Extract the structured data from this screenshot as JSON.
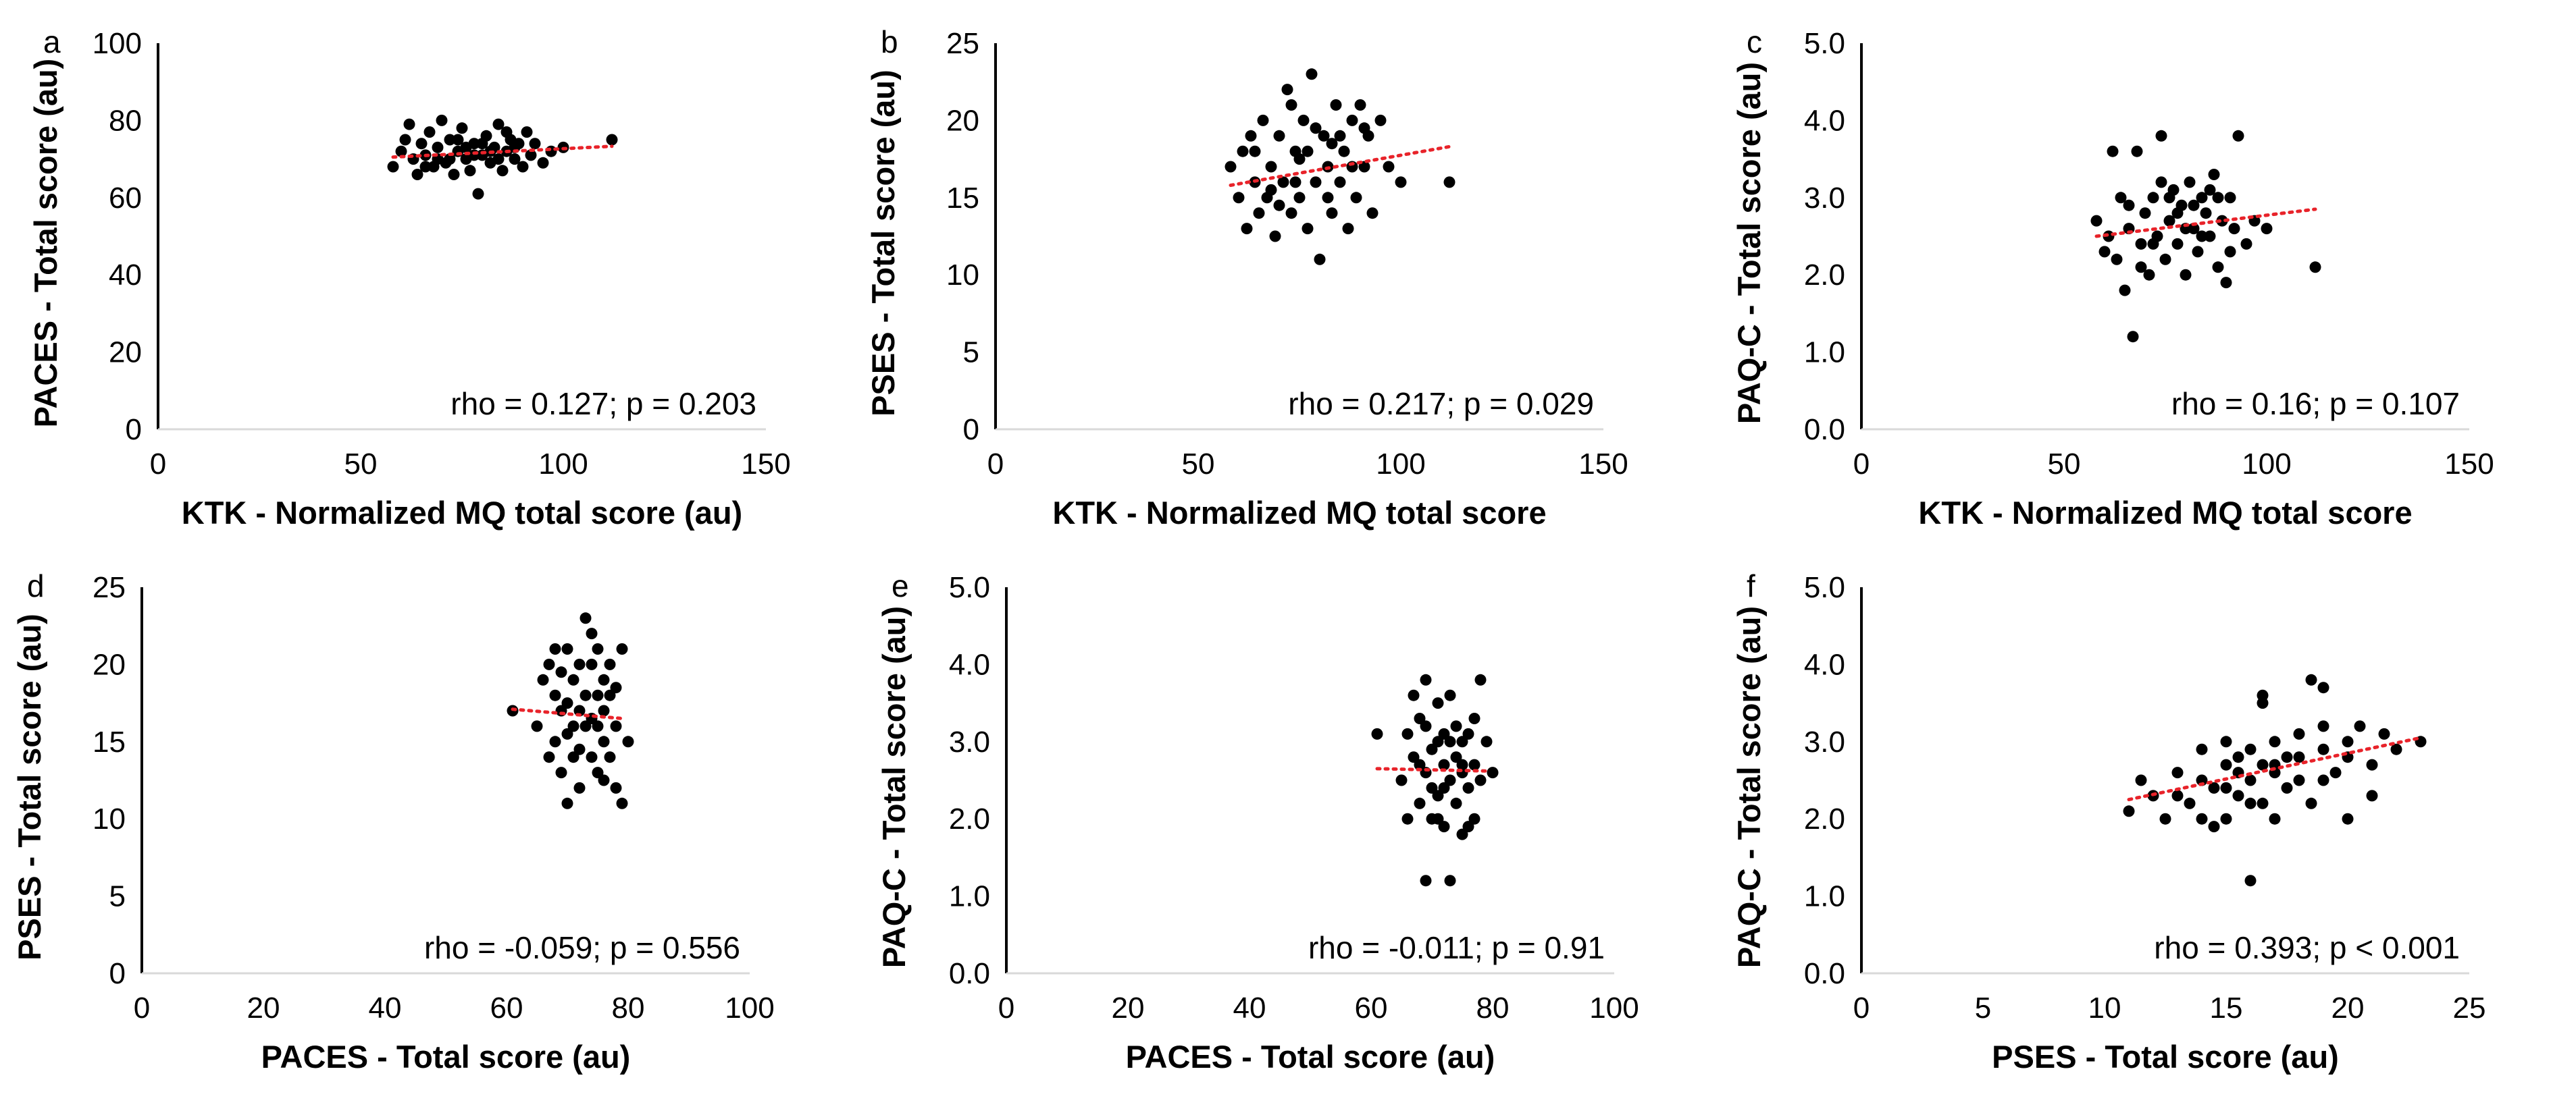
{
  "figure": {
    "background": "#ffffff",
    "point_color": "#000000",
    "trend_color": "#e8232a",
    "axis_color": "#000000"
  },
  "chart_data": [
    {
      "panel": "a",
      "type": "scatter",
      "xlabel": "KTK - Normalized MQ total score (au)",
      "ylabel": "PACES - Total score (au)",
      "xlim": [
        0,
        150
      ],
      "ylim": [
        0,
        100
      ],
      "xticks": [
        0,
        50,
        100,
        150
      ],
      "yticks": [
        0,
        20,
        40,
        60,
        80,
        100
      ],
      "tick_decimals": 0,
      "annotation": "rho = 0.127; p = 0.203",
      "trendline": {
        "x": [
          58,
          112
        ],
        "y": [
          70.5,
          73.3
        ]
      },
      "points": [
        [
          58,
          68
        ],
        [
          60,
          72
        ],
        [
          61,
          75
        ],
        [
          62,
          79
        ],
        [
          63,
          70
        ],
        [
          64,
          66
        ],
        [
          65,
          74
        ],
        [
          66,
          71
        ],
        [
          67,
          77
        ],
        [
          68,
          68
        ],
        [
          69,
          73
        ],
        [
          70,
          80
        ],
        [
          71,
          69
        ],
        [
          72,
          75
        ],
        [
          73,
          66
        ],
        [
          74,
          72
        ],
        [
          75,
          78
        ],
        [
          76,
          70
        ],
        [
          77,
          67
        ],
        [
          78,
          74
        ],
        [
          79,
          61
        ],
        [
          80,
          71
        ],
        [
          81,
          76
        ],
        [
          82,
          69
        ],
        [
          83,
          73
        ],
        [
          84,
          79
        ],
        [
          85,
          67
        ],
        [
          86,
          72
        ],
        [
          87,
          75
        ],
        [
          88,
          70
        ],
        [
          89,
          74
        ],
        [
          90,
          68
        ],
        [
          91,
          77
        ],
        [
          92,
          71
        ],
        [
          93,
          74
        ],
        [
          95,
          69
        ],
        [
          97,
          72
        ],
        [
          100,
          73
        ],
        [
          112,
          75
        ],
        [
          66,
          68
        ],
        [
          72,
          70
        ],
        [
          78,
          71
        ],
        [
          84,
          70
        ],
        [
          88,
          73
        ],
        [
          74,
          75
        ],
        [
          80,
          74
        ],
        [
          69,
          70
        ],
        [
          76,
          73
        ],
        [
          82,
          72
        ],
        [
          86,
          77
        ]
      ]
    },
    {
      "panel": "b",
      "type": "scatter",
      "xlabel": "KTK - Normalized MQ total score",
      "ylabel": "PSES - Total score (au)",
      "xlim": [
        0,
        150
      ],
      "ylim": [
        0,
        25
      ],
      "xticks": [
        0,
        50,
        100,
        150
      ],
      "yticks": [
        0,
        5,
        10,
        15,
        20,
        25
      ],
      "tick_decimals": 0,
      "annotation": "rho = 0.217; p = 0.029",
      "trendline": {
        "x": [
          58,
          112
        ],
        "y": [
          15.8,
          18.3
        ]
      },
      "points": [
        [
          58,
          17
        ],
        [
          60,
          15
        ],
        [
          61,
          18
        ],
        [
          62,
          13
        ],
        [
          63,
          19
        ],
        [
          64,
          16
        ],
        [
          65,
          14
        ],
        [
          66,
          20
        ],
        [
          67,
          15
        ],
        [
          68,
          17
        ],
        [
          69,
          12.5
        ],
        [
          70,
          19
        ],
        [
          71,
          16
        ],
        [
          72,
          22
        ],
        [
          73,
          14
        ],
        [
          74,
          18
        ],
        [
          75,
          15
        ],
        [
          76,
          20
        ],
        [
          77,
          13
        ],
        [
          78,
          23
        ],
        [
          79,
          16
        ],
        [
          80,
          11
        ],
        [
          81,
          19
        ],
        [
          82,
          17
        ],
        [
          83,
          14
        ],
        [
          84,
          21
        ],
        [
          85,
          16
        ],
        [
          86,
          18
        ],
        [
          87,
          13
        ],
        [
          88,
          20
        ],
        [
          89,
          15
        ],
        [
          90,
          21
        ],
        [
          91,
          17
        ],
        [
          92,
          19
        ],
        [
          93,
          14
        ],
        [
          95,
          20
        ],
        [
          97,
          17
        ],
        [
          100,
          16
        ],
        [
          112,
          16
        ],
        [
          64,
          18
        ],
        [
          70,
          14.5
        ],
        [
          75,
          17.5
        ],
        [
          79,
          19.5
        ],
        [
          85,
          19
        ],
        [
          88,
          17
        ],
        [
          73,
          21
        ],
        [
          82,
          15
        ],
        [
          68,
          15.5
        ],
        [
          77,
          18
        ],
        [
          91,
          19.5
        ],
        [
          83,
          18.5
        ],
        [
          74,
          16
        ]
      ]
    },
    {
      "panel": "c",
      "type": "scatter",
      "xlabel": "KTK - Normalized MQ total score",
      "ylabel": "PAQ-C - Total score (au)",
      "xlim": [
        0,
        150
      ],
      "ylim": [
        0,
        5
      ],
      "xticks": [
        0,
        50,
        100,
        150
      ],
      "yticks": [
        0,
        1,
        2,
        3,
        4,
        5
      ],
      "tick_decimals": 1,
      "annotation": "rho = 0.16; p = 0.107",
      "trendline": {
        "x": [
          58,
          112
        ],
        "y": [
          2.5,
          2.85
        ]
      },
      "points": [
        [
          58,
          2.7
        ],
        [
          60,
          2.3
        ],
        [
          61,
          2.5
        ],
        [
          62,
          3.6
        ],
        [
          63,
          2.2
        ],
        [
          64,
          3.0
        ],
        [
          65,
          1.8
        ],
        [
          66,
          2.6
        ],
        [
          67,
          1.2
        ],
        [
          68,
          3.6
        ],
        [
          69,
          2.4
        ],
        [
          70,
          2.8
        ],
        [
          71,
          2.0
        ],
        [
          72,
          3.0
        ],
        [
          73,
          2.5
        ],
        [
          74,
          3.8
        ],
        [
          75,
          2.2
        ],
        [
          76,
          2.7
        ],
        [
          77,
          3.1
        ],
        [
          78,
          2.4
        ],
        [
          79,
          2.9
        ],
        [
          80,
          2.0
        ],
        [
          81,
          3.2
        ],
        [
          82,
          2.6
        ],
        [
          83,
          2.3
        ],
        [
          84,
          3.0
        ],
        [
          85,
          2.8
        ],
        [
          86,
          2.5
        ],
        [
          87,
          3.3
        ],
        [
          88,
          2.1
        ],
        [
          89,
          2.7
        ],
        [
          90,
          1.9
        ],
        [
          91,
          3.0
        ],
        [
          92,
          2.6
        ],
        [
          93,
          3.8
        ],
        [
          95,
          2.4
        ],
        [
          97,
          2.7
        ],
        [
          100,
          2.6
        ],
        [
          112,
          2.1
        ],
        [
          66,
          2.9
        ],
        [
          72,
          2.4
        ],
        [
          78,
          2.8
        ],
        [
          84,
          2.5
        ],
        [
          88,
          3.0
        ],
        [
          74,
          3.2
        ],
        [
          80,
          2.6
        ],
        [
          69,
          2.1
        ],
        [
          76,
          3.0
        ],
        [
          82,
          2.9
        ],
        [
          86,
          3.1
        ],
        [
          91,
          2.3
        ]
      ]
    },
    {
      "panel": "d",
      "type": "scatter",
      "xlabel": "PACES - Total score (au)",
      "ylabel": "PSES - Total score (au)",
      "xlim": [
        0,
        100
      ],
      "ylim": [
        0,
        25
      ],
      "xticks": [
        0,
        20,
        40,
        60,
        80,
        100
      ],
      "yticks": [
        0,
        5,
        10,
        15,
        20,
        25
      ],
      "tick_decimals": 0,
      "annotation": "rho = -0.059; p = 0.556",
      "trendline": {
        "x": [
          61,
          79
        ],
        "y": [
          17.1,
          16.5
        ]
      },
      "points": [
        [
          61,
          17
        ],
        [
          65,
          16
        ],
        [
          66,
          19
        ],
        [
          67,
          14
        ],
        [
          67,
          20
        ],
        [
          68,
          15
        ],
        [
          68,
          18
        ],
        [
          69,
          13
        ],
        [
          69,
          17
        ],
        [
          70,
          21
        ],
        [
          70,
          11
        ],
        [
          70,
          15.5
        ],
        [
          71,
          19
        ],
        [
          71,
          14
        ],
        [
          72,
          17
        ],
        [
          72,
          20
        ],
        [
          72,
          12
        ],
        [
          73,
          16
        ],
        [
          73,
          23
        ],
        [
          73,
          18
        ],
        [
          74,
          14
        ],
        [
          74,
          20
        ],
        [
          74,
          16.5
        ],
        [
          75,
          13
        ],
        [
          75,
          18
        ],
        [
          75,
          21
        ],
        [
          76,
          15
        ],
        [
          76,
          17
        ],
        [
          76,
          19
        ],
        [
          77,
          14
        ],
        [
          77,
          20
        ],
        [
          78,
          12
        ],
        [
          78,
          16
        ],
        [
          78,
          18.5
        ],
        [
          79,
          21
        ],
        [
          79,
          11
        ],
        [
          80,
          15
        ],
        [
          68,
          21
        ],
        [
          70,
          17.5
        ],
        [
          74,
          22
        ],
        [
          76,
          12.5
        ],
        [
          69,
          19.5
        ],
        [
          72,
          14.5
        ],
        [
          75,
          16
        ],
        [
          77,
          18
        ],
        [
          71,
          16
        ]
      ]
    },
    {
      "panel": "e",
      "type": "scatter",
      "xlabel": "PACES - Total score (au)",
      "ylabel": "PAQ-C - Total score (au)",
      "xlim": [
        0,
        100
      ],
      "ylim": [
        0,
        5
      ],
      "xticks": [
        0,
        20,
        40,
        60,
        80,
        100
      ],
      "yticks": [
        0,
        1,
        2,
        3,
        4,
        5
      ],
      "tick_decimals": 1,
      "annotation": "rho = -0.011; p = 0.91",
      "trendline": {
        "x": [
          61,
          79
        ],
        "y": [
          2.65,
          2.62
        ]
      },
      "points": [
        [
          61,
          3.1
        ],
        [
          65,
          2.5
        ],
        [
          66,
          3.1
        ],
        [
          66,
          2.0
        ],
        [
          67,
          3.6
        ],
        [
          67,
          2.8
        ],
        [
          68,
          2.2
        ],
        [
          68,
          3.3
        ],
        [
          69,
          1.2
        ],
        [
          69,
          2.6
        ],
        [
          69,
          3.8
        ],
        [
          70,
          2.0
        ],
        [
          70,
          2.9
        ],
        [
          71,
          3.5
        ],
        [
          71,
          2.3
        ],
        [
          72,
          2.7
        ],
        [
          72,
          1.9
        ],
        [
          72,
          3.1
        ],
        [
          73,
          1.2
        ],
        [
          73,
          2.5
        ],
        [
          73,
          3.0
        ],
        [
          74,
          2.2
        ],
        [
          74,
          2.8
        ],
        [
          74,
          3.2
        ],
        [
          75,
          1.8
        ],
        [
          75,
          2.6
        ],
        [
          75,
          3.0
        ],
        [
          76,
          2.4
        ],
        [
          76,
          3.1
        ],
        [
          77,
          2.0
        ],
        [
          77,
          2.7
        ],
        [
          78,
          3.8
        ],
        [
          78,
          2.5
        ],
        [
          79,
          3.0
        ],
        [
          80,
          2.6
        ],
        [
          68,
          2.7
        ],
        [
          70,
          2.4
        ],
        [
          71,
          3.0
        ],
        [
          73,
          3.6
        ],
        [
          76,
          1.9
        ],
        [
          69,
          3.2
        ],
        [
          72,
          2.4
        ],
        [
          75,
          2.7
        ],
        [
          77,
          3.3
        ],
        [
          71,
          2.0
        ]
      ]
    },
    {
      "panel": "f",
      "type": "scatter",
      "xlabel": "PSES - Total score (au)",
      "ylabel": "PAQ-C - Total score (au)",
      "xlim": [
        0,
        25
      ],
      "ylim": [
        0,
        5
      ],
      "xticks": [
        0,
        5,
        10,
        15,
        20,
        25
      ],
      "yticks": [
        0,
        1,
        2,
        3,
        4,
        5
      ],
      "tick_decimals": 1,
      "annotation": "rho = 0.393; p < 0.001",
      "trendline": {
        "x": [
          11,
          23
        ],
        "y": [
          2.25,
          3.05
        ]
      },
      "points": [
        [
          11,
          2.1
        ],
        [
          11.5,
          2.5
        ],
        [
          12.5,
          2.0
        ],
        [
          13,
          2.6
        ],
        [
          13.5,
          2.2
        ],
        [
          14,
          2.5
        ],
        [
          14,
          2.9
        ],
        [
          14.5,
          1.9
        ],
        [
          14.5,
          2.4
        ],
        [
          15,
          2.7
        ],
        [
          15,
          2.0
        ],
        [
          15,
          3.0
        ],
        [
          15.5,
          2.3
        ],
        [
          15.5,
          2.8
        ],
        [
          16,
          1.2
        ],
        [
          16,
          2.5
        ],
        [
          16,
          2.9
        ],
        [
          16.5,
          3.5
        ],
        [
          16.5,
          2.2
        ],
        [
          16.5,
          3.6
        ],
        [
          17,
          2.7
        ],
        [
          17,
          2.0
        ],
        [
          17,
          3.0
        ],
        [
          17.5,
          2.4
        ],
        [
          17.5,
          2.8
        ],
        [
          18,
          3.1
        ],
        [
          18,
          2.5
        ],
        [
          18.5,
          3.8
        ],
        [
          18.5,
          2.2
        ],
        [
          19,
          3.7
        ],
        [
          19,
          2.9
        ],
        [
          19,
          3.2
        ],
        [
          19.5,
          2.6
        ],
        [
          20,
          3.0
        ],
        [
          20,
          2.0
        ],
        [
          20.5,
          3.2
        ],
        [
          21,
          2.7
        ],
        [
          21,
          2.3
        ],
        [
          21.5,
          3.1
        ],
        [
          22,
          2.9
        ],
        [
          23,
          3.0
        ],
        [
          13,
          2.3
        ],
        [
          14,
          2.0
        ],
        [
          15.5,
          2.6
        ],
        [
          16,
          2.2
        ],
        [
          17,
          2.6
        ],
        [
          18,
          2.8
        ],
        [
          19,
          2.5
        ],
        [
          20,
          2.8
        ],
        [
          15,
          2.4
        ],
        [
          16.5,
          2.7
        ],
        [
          12,
          2.3
        ]
      ]
    }
  ]
}
